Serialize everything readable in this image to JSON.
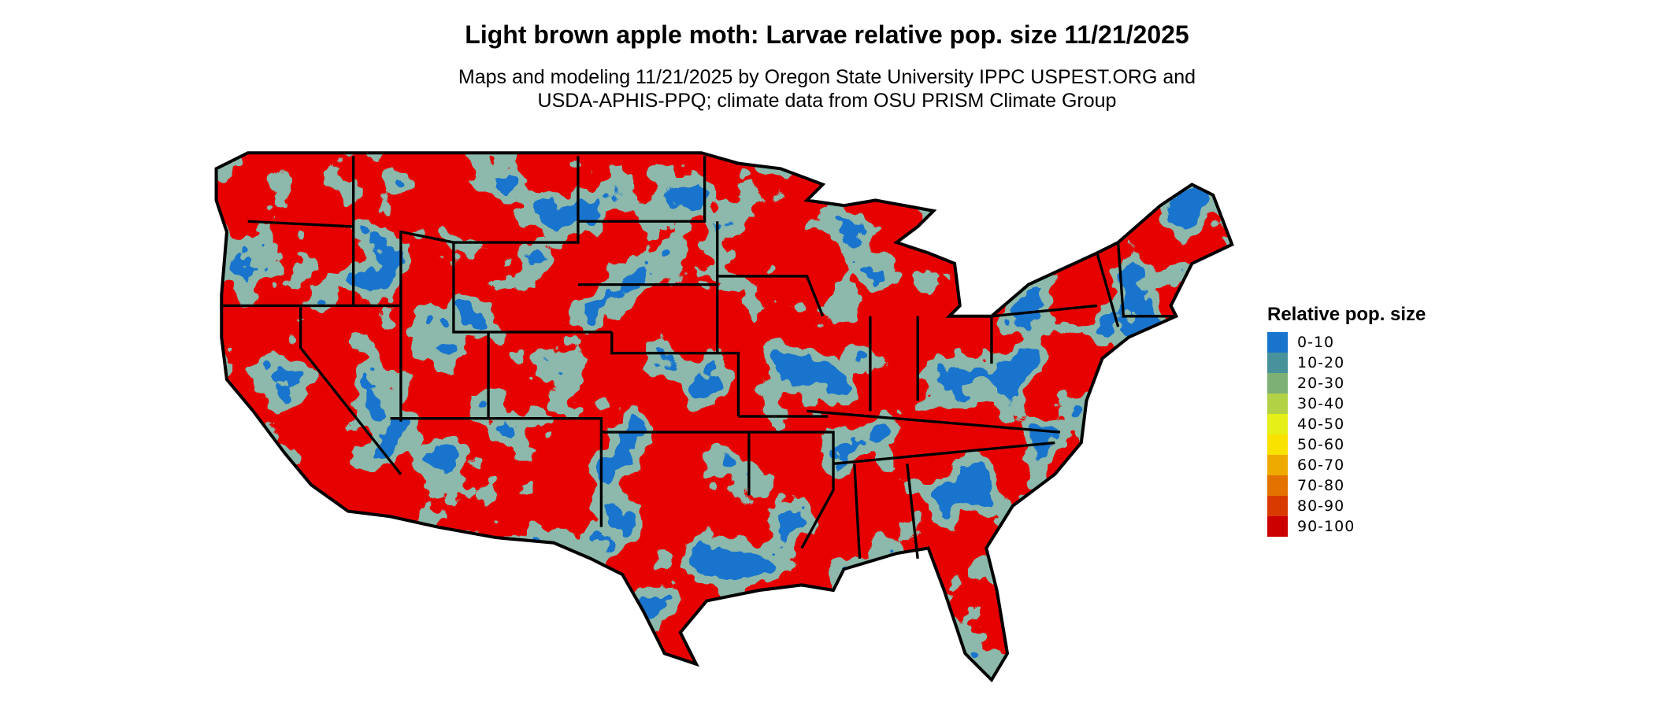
{
  "title": "Light brown apple moth: Larvae relative pop. size 11/21/2025",
  "subtitle_line1": "Maps and modeling 11/21/2025 by Oregon State University IPPC USPEST.ORG and",
  "subtitle_line2": "USDA-APHIS-PPQ; climate data from OSU PRISM Climate Group",
  "legend": {
    "title": "Relative pop. size",
    "items": [
      {
        "label": "0-10",
        "color": "#1874cd"
      },
      {
        "label": "10-20",
        "color": "#48929b"
      },
      {
        "label": "20-30",
        "color": "#7cb075"
      },
      {
        "label": "30-40",
        "color": "#b2d145"
      },
      {
        "label": "40-50",
        "color": "#e6ef17"
      },
      {
        "label": "50-60",
        "color": "#f9e100"
      },
      {
        "label": "60-70",
        "color": "#eeaa00"
      },
      {
        "label": "70-80",
        "color": "#e37200"
      },
      {
        "label": "80-90",
        "color": "#d93a00"
      },
      {
        "label": "90-100",
        "color": "#cc0000"
      }
    ]
  }
}
